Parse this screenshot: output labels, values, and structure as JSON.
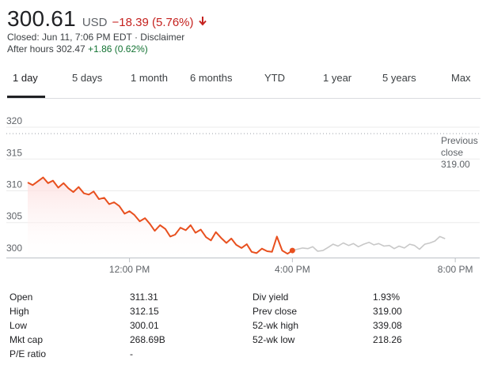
{
  "quote": {
    "price": "300.61",
    "currency": "USD",
    "change": "−18.39 (5.76%)",
    "closed_line": "Closed: Jun 11, 7:06 PM EDT · Disclaimer",
    "after_hours_label": "After hours 302.47",
    "after_hours_change": "+1.86 (0.62%)",
    "colors": {
      "down": "#c5221f",
      "up": "#137333"
    }
  },
  "tabs": [
    {
      "label": "1 day",
      "active": true
    },
    {
      "label": "5 days"
    },
    {
      "label": "1 month"
    },
    {
      "label": "6 months"
    },
    {
      "label": "YTD"
    },
    {
      "label": "1 year"
    },
    {
      "label": "5 years"
    },
    {
      "label": "Max"
    }
  ],
  "chart_data": {
    "type": "line",
    "ylim": [
      299.5,
      320.5
    ],
    "y_ticks": [
      "300",
      "305",
      "310",
      "315",
      "320"
    ],
    "y_tick_values": [
      300,
      305,
      310,
      315,
      320
    ],
    "x_ticks": [
      "12:00 PM",
      "4:00 PM",
      "8:00 PM"
    ],
    "x_tick_values": [
      12,
      16,
      20
    ],
    "xlim": [
      9.5,
      20.6
    ],
    "previous_close": {
      "line1": "Previous",
      "line2": "close",
      "value_text": "319.00",
      "value": 319.0
    },
    "series": [
      {
        "session": "regular",
        "color": "#e8501f",
        "x": [
          9.5,
          9.62,
          9.75,
          9.88,
          10.0,
          10.12,
          10.25,
          10.38,
          10.5,
          10.62,
          10.75,
          10.88,
          11.0,
          11.12,
          11.25,
          11.38,
          11.5,
          11.62,
          11.75,
          11.88,
          12.0,
          12.12,
          12.25,
          12.38,
          12.5,
          12.62,
          12.75,
          12.88,
          13.0,
          13.12,
          13.25,
          13.38,
          13.5,
          13.62,
          13.75,
          13.88,
          14.0,
          14.12,
          14.25,
          14.38,
          14.5,
          14.62,
          14.75,
          14.88,
          15.0,
          15.12,
          15.25,
          15.38,
          15.5,
          15.62,
          15.75,
          15.88,
          16.0
        ],
        "y": [
          311.3,
          310.9,
          311.5,
          312.1,
          311.2,
          311.6,
          310.5,
          311.2,
          310.4,
          309.8,
          310.6,
          309.6,
          309.4,
          309.9,
          308.7,
          308.9,
          307.9,
          308.2,
          307.6,
          306.4,
          306.8,
          306.2,
          305.2,
          305.7,
          304.8,
          303.7,
          304.6,
          304.0,
          302.8,
          303.1,
          304.2,
          303.8,
          304.6,
          303.4,
          303.9,
          302.7,
          302.2,
          303.5,
          302.6,
          301.8,
          302.5,
          301.5,
          301.0,
          301.6,
          300.4,
          300.2,
          300.9,
          300.5,
          300.4,
          302.8,
          300.6,
          300.1,
          300.61
        ]
      },
      {
        "session": "after-hours",
        "color": "#c8c8c8",
        "x": [
          16.0,
          16.12,
          16.25,
          16.38,
          16.5,
          16.62,
          16.75,
          16.88,
          17.0,
          17.12,
          17.25,
          17.38,
          17.5,
          17.62,
          17.75,
          17.88,
          18.0,
          18.12,
          18.25,
          18.38,
          18.5,
          18.62,
          18.75,
          18.88,
          19.0,
          19.12,
          19.25,
          19.38,
          19.5,
          19.62,
          19.75
        ],
        "y": [
          300.61,
          300.8,
          301.0,
          300.9,
          301.2,
          300.5,
          300.6,
          301.1,
          301.6,
          301.3,
          301.8,
          301.4,
          301.7,
          301.2,
          301.6,
          301.9,
          301.5,
          301.7,
          301.3,
          301.4,
          300.9,
          301.3,
          301.0,
          301.6,
          301.4,
          300.8,
          301.6,
          301.8,
          302.1,
          302.8,
          302.47
        ]
      }
    ]
  },
  "stats": {
    "left": [
      {
        "label": "Open",
        "value": "311.31"
      },
      {
        "label": "High",
        "value": "312.15"
      },
      {
        "label": "Low",
        "value": "300.01"
      },
      {
        "label": "Mkt cap",
        "value": "268.69B"
      },
      {
        "label": "P/E ratio",
        "value": "-"
      }
    ],
    "right": [
      {
        "label": "Div yield",
        "value": "1.93%"
      },
      {
        "label": "Prev close",
        "value": "319.00"
      },
      {
        "label": "52-wk high",
        "value": "339.08"
      },
      {
        "label": "52-wk low",
        "value": "218.26"
      }
    ]
  }
}
